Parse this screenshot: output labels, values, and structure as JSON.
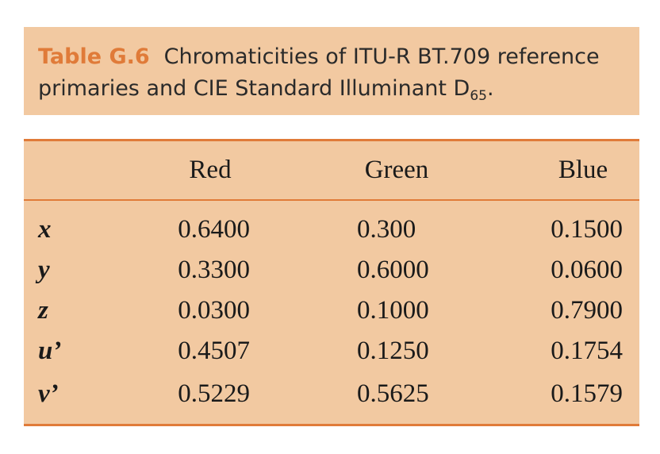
{
  "caption": {
    "label": "Table G.6",
    "text": "Chromaticities of ITU-R BT.709 reference primaries and CIE Standard Illuminant D",
    "subscript": "65",
    "end": "."
  },
  "table": {
    "header": [
      "Red",
      "Green",
      "Blue"
    ],
    "rows": [
      [
        "x",
        "0.6400",
        "0.300",
        "0.1500"
      ],
      [
        "y",
        "0.3300",
        "0.6000",
        "0.0600"
      ],
      [
        "z",
        "0.0300",
        "0.1000",
        "0.7900"
      ],
      [
        "u’",
        "0.4507",
        "0.1250",
        "0.1754"
      ],
      [
        "v’",
        "0.5229",
        "0.5625",
        "0.1579"
      ]
    ]
  }
}
